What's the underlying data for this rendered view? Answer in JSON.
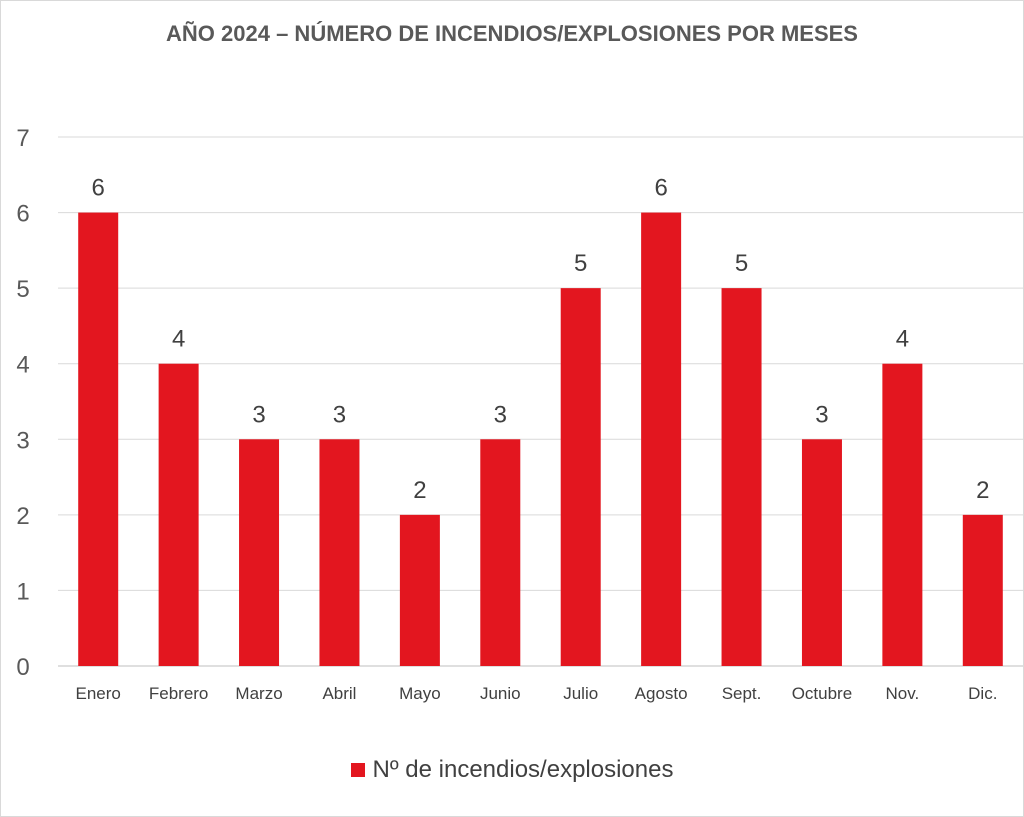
{
  "chart_data": {
    "type": "bar",
    "title": "AÑO 2024 – NÚMERO DE INCENDIOS/EXPLOSIONES POR MESES",
    "xlabel": "",
    "ylabel": "",
    "categories": [
      "Enero",
      "Febrero",
      "Marzo",
      "Abril",
      "Mayo",
      "Junio",
      "Julio",
      "Agosto",
      "Sept.",
      "Octubre",
      "Nov.",
      "Dic."
    ],
    "series": [
      {
        "name": "Nº de incendios/explosiones",
        "values": [
          6,
          4,
          3,
          3,
          2,
          3,
          5,
          6,
          5,
          3,
          4,
          2
        ],
        "color": "#e3161f"
      }
    ],
    "ylim": [
      0,
      7
    ],
    "yticks": [
      "0",
      "1",
      "2",
      "3",
      "4",
      "5",
      "6",
      "7"
    ],
    "grid": true,
    "legend": "bottom",
    "data_labels": true
  }
}
